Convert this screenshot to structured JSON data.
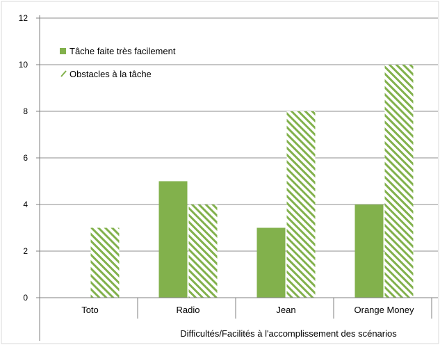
{
  "chart_data": {
    "type": "bar",
    "categories": [
      "Toto",
      "Radio",
      "Jean",
      "Orange Money"
    ],
    "series": [
      {
        "name": "Tâche faite très facilement",
        "values": [
          0,
          5,
          3,
          4
        ],
        "color": "#82b14c",
        "pattern": "solid"
      },
      {
        "name": "Obstacles à la tâche",
        "values": [
          3,
          4,
          8,
          10
        ],
        "color": "#82b14c",
        "pattern": "diagonal-hatch"
      }
    ],
    "title": "",
    "xlabel": "Difficultés/Facilités à l'accomplissement des scénarios",
    "ylabel": "",
    "ylim": [
      0,
      12
    ],
    "yticks": [
      0,
      2,
      4,
      6,
      8,
      10,
      12
    ],
    "grid": true,
    "legend_position": "top-left"
  }
}
